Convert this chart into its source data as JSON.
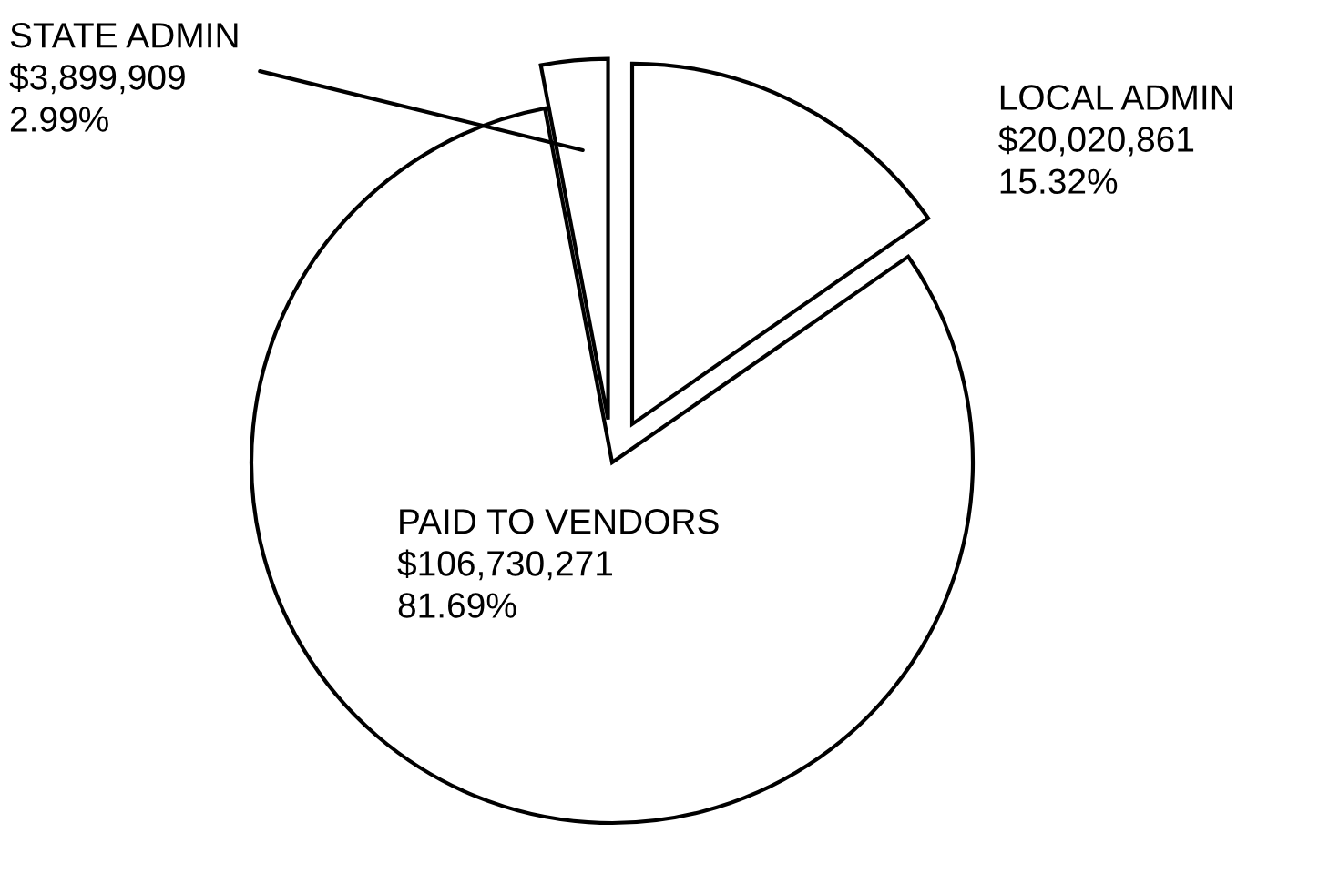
{
  "chart_data": {
    "type": "pie",
    "categories": [
      "STATE ADMIN",
      "LOCAL ADMIN",
      "PAID TO VENDORS"
    ],
    "values": [
      3899909,
      20020861,
      106730271
    ],
    "value_labels": [
      "$3,899,909\n2.99%",
      "$20,020,861\n15.32%",
      "$106,730,271\n81.69%"
    ],
    "colors": [
      "#ffffff",
      "#ffffff",
      "#ffffff"
    ]
  }
}
